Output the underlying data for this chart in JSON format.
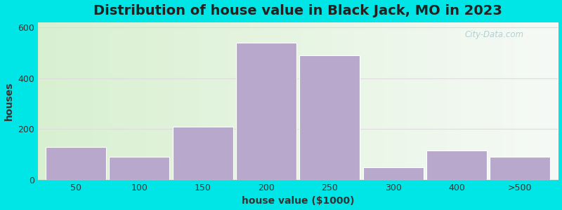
{
  "title": "Distribution of house value in Black Jack, MO in 2023",
  "xlabel": "house value ($1000)",
  "ylabel": "houses",
  "bar_labels": [
    "50",
    "100",
    "150",
    "200",
    "250",
    "300",
    "400",
    ">500"
  ],
  "bar_values": [
    130,
    90,
    210,
    540,
    490,
    50,
    115,
    90
  ],
  "bar_color": "#b8a9cc",
  "bar_edgecolor": "#ffffff",
  "bar_linewidth": 0.8,
  "ylim": [
    0,
    620
  ],
  "yticks": [
    0,
    200,
    400,
    600
  ],
  "background_outer": "#00e5e5",
  "background_inner_left": "#d8f0d0",
  "background_inner_right": "#f5f5f5",
  "title_fontsize": 14,
  "axis_label_fontsize": 10,
  "tick_fontsize": 9,
  "watermark_text": "City-Data.com",
  "watermark_color": "#a8c8d0",
  "grid_color": "#dddddd",
  "grid_linewidth": 0.8
}
